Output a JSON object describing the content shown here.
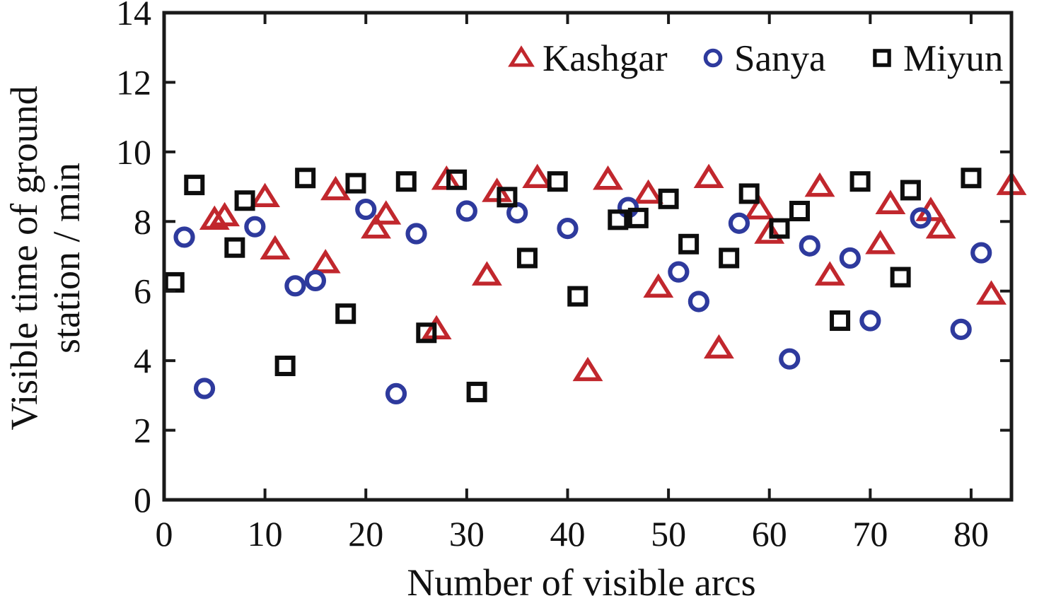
{
  "chart_data": {
    "type": "scatter",
    "title": "",
    "xlabel": "Number of visible arcs",
    "ylabel": "Visible time of ground station / min",
    "ylabel_lines": [
      "Visible time of ground",
      "station / min"
    ],
    "xlim": [
      0,
      84
    ],
    "ylim": [
      0,
      14
    ],
    "xticks": [
      0,
      10,
      20,
      30,
      40,
      50,
      60,
      70,
      80
    ],
    "yticks": [
      0,
      2,
      4,
      6,
      8,
      10,
      12,
      14
    ],
    "grid": false,
    "frame": "box-with-inward-ticks",
    "legend_position": "top-inside",
    "colors": {
      "kashgar": "#c1272d",
      "sanya": "#2e3a9d",
      "miyun": "#0d0d0d",
      "axis": "#1a1a1a"
    },
    "series": [
      {
        "name": "Kashgar",
        "marker": "triangle",
        "color": "#c1272d",
        "points": [
          [
            5,
            8.05
          ],
          [
            6,
            8.15
          ],
          [
            10,
            8.7
          ],
          [
            11,
            7.2
          ],
          [
            16,
            6.8
          ],
          [
            17,
            8.9
          ],
          [
            21,
            7.8
          ],
          [
            22,
            8.2
          ],
          [
            27,
            4.9
          ],
          [
            28,
            9.2
          ],
          [
            32,
            6.45
          ],
          [
            33,
            8.85
          ],
          [
            37,
            9.25
          ],
          [
            42,
            3.7
          ],
          [
            44,
            9.2
          ],
          [
            48,
            8.8
          ],
          [
            49,
            6.1
          ],
          [
            54,
            9.25
          ],
          [
            55,
            4.35
          ],
          [
            59,
            8.35
          ],
          [
            60,
            7.65
          ],
          [
            65,
            9.0
          ],
          [
            66,
            6.45
          ],
          [
            71,
            7.35
          ],
          [
            72,
            8.5
          ],
          [
            76,
            8.3
          ],
          [
            77,
            7.8
          ],
          [
            82,
            5.9
          ],
          [
            84,
            9.05
          ]
        ]
      },
      {
        "name": "Sanya",
        "marker": "circle",
        "color": "#2e3a9d",
        "points": [
          [
            2,
            7.55
          ],
          [
            4,
            3.2
          ],
          [
            9,
            7.85
          ],
          [
            13,
            6.15
          ],
          [
            15,
            6.3
          ],
          [
            20,
            8.35
          ],
          [
            23,
            3.05
          ],
          [
            25,
            7.65
          ],
          [
            30,
            8.3
          ],
          [
            35,
            8.25
          ],
          [
            40,
            7.8
          ],
          [
            46,
            8.4
          ],
          [
            51,
            6.55
          ],
          [
            53,
            5.7
          ],
          [
            57,
            7.95
          ],
          [
            62,
            4.05
          ],
          [
            64,
            7.3
          ],
          [
            68,
            6.95
          ],
          [
            70,
            5.15
          ],
          [
            75,
            8.1
          ],
          [
            79,
            4.9
          ],
          [
            81,
            7.1
          ]
        ]
      },
      {
        "name": "Miyun",
        "marker": "square",
        "color": "#0d0d0d",
        "points": [
          [
            1,
            6.25
          ],
          [
            3,
            9.05
          ],
          [
            7,
            7.25
          ],
          [
            8,
            8.6
          ],
          [
            12,
            3.85
          ],
          [
            14,
            9.25
          ],
          [
            18,
            5.35
          ],
          [
            19,
            9.1
          ],
          [
            24,
            9.15
          ],
          [
            26,
            4.8
          ],
          [
            29,
            9.2
          ],
          [
            31,
            3.1
          ],
          [
            34,
            8.7
          ],
          [
            36,
            6.95
          ],
          [
            39,
            9.15
          ],
          [
            41,
            5.85
          ],
          [
            45,
            8.05
          ],
          [
            47,
            8.1
          ],
          [
            50,
            8.65
          ],
          [
            52,
            7.35
          ],
          [
            56,
            6.95
          ],
          [
            58,
            8.8
          ],
          [
            61,
            7.8
          ],
          [
            63,
            8.3
          ],
          [
            67,
            5.15
          ],
          [
            69,
            9.15
          ],
          [
            73,
            6.4
          ],
          [
            74,
            8.9
          ],
          [
            80,
            9.25
          ]
        ]
      }
    ]
  }
}
